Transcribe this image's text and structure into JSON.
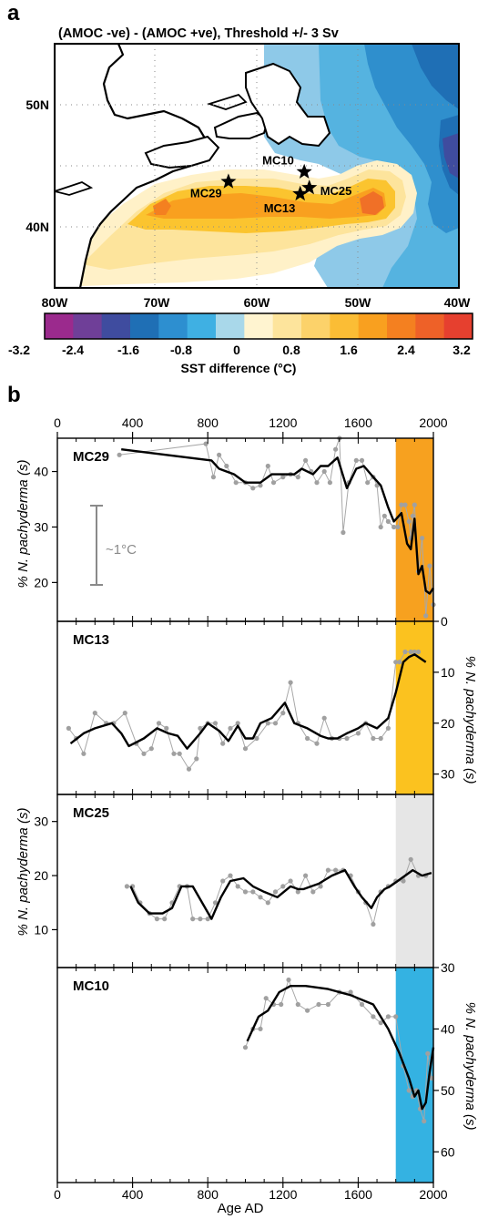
{
  "panel_a": {
    "letter": "a",
    "title": "(AMOC -ve) - (AMOC +ve), Threshold +/- 3 Sv",
    "lon_ticks": [
      "80W",
      "70W",
      "60W",
      "50W",
      "40W"
    ],
    "lat_ticks": [
      "50N",
      "40N"
    ],
    "sites": [
      {
        "name": "MC29",
        "lon": -62.8,
        "lat": 43.7
      },
      {
        "name": "MC10",
        "lon": -55.3,
        "lat": 44.5
      },
      {
        "name": "MC25",
        "lon": -54.8,
        "lat": 43.2
      },
      {
        "name": "MC13",
        "lon": -55.7,
        "lat": 42.7
      }
    ],
    "colorbar": {
      "ticks": [
        "-3.2",
        "-2.4",
        "-1.6",
        "-0.8",
        "0",
        "0.8",
        "1.6",
        "2.4",
        "3.2"
      ],
      "label": "SST difference (°C)",
      "colors": [
        "#9b2a8d",
        "#6f3f98",
        "#3f4c9f",
        "#1f6fb5",
        "#2d8fd0",
        "#3fb0e3",
        "#a9d8ea",
        "#fff4d0",
        "#fde49c",
        "#fcd26a",
        "#fbbd35",
        "#f9a01f",
        "#f48020",
        "#ee6128",
        "#e6402f"
      ]
    }
  },
  "panel_b": {
    "letter": "b",
    "top_ticks": [
      "0",
      "400",
      "800",
      "1200",
      "1600",
      "2000"
    ],
    "bottom_ticks": [
      "0",
      "400",
      "800",
      "1200",
      "1600",
      "2000"
    ],
    "xlabel": "Age AD",
    "ylabel_left": "% N. pachyderma (s)",
    "ylabel_right": "% N. pachyderma (s)",
    "scale_label": "~1°C"
  },
  "chart_data": [
    {
      "type": "line",
      "name": "MC29",
      "xlim": [
        0,
        2000
      ],
      "ylim": [
        46,
        13
      ],
      "y_axis": "left",
      "yticks": [
        "20",
        "30",
        "40"
      ],
      "highlight": {
        "from": 1800,
        "to": 2000,
        "color": "#f7a11f"
      },
      "x": [
        340,
        820,
        860,
        940,
        1000,
        1080,
        1140,
        1200,
        1260,
        1300,
        1360,
        1400,
        1440,
        1490,
        1540,
        1590,
        1630,
        1680,
        1720,
        1760,
        1790,
        1830,
        1860,
        1880,
        1900,
        1920,
        1940,
        1960,
        1980,
        2000
      ],
      "y": [
        44,
        42,
        40.5,
        39.5,
        38,
        38,
        39.5,
        39.5,
        39.5,
        40.5,
        39.5,
        41,
        41,
        42.5,
        37,
        40.5,
        41,
        39,
        37.5,
        33.5,
        31,
        32.5,
        27,
        26,
        31.5,
        21.5,
        23,
        18.5,
        18,
        19
      ],
      "points_x": [
        330,
        790,
        830,
        860,
        900,
        950,
        1000,
        1040,
        1080,
        1120,
        1150,
        1200,
        1240,
        1280,
        1320,
        1350,
        1380,
        1420,
        1450,
        1480,
        1500,
        1520,
        1550,
        1590,
        1620,
        1650,
        1680,
        1700,
        1720,
        1740,
        1760,
        1790,
        1810,
        1830,
        1850,
        1870,
        1880,
        1890,
        1900,
        1920,
        1940,
        1960,
        1980,
        2000
      ],
      "points_y": [
        43,
        45,
        39,
        43,
        41,
        38,
        38,
        37,
        37.5,
        41,
        38,
        39,
        39.5,
        39,
        42,
        40,
        38,
        40,
        38,
        44,
        46,
        29,
        38,
        42,
        42,
        38,
        39,
        37.5,
        30,
        32,
        31,
        30,
        30,
        34,
        34,
        31,
        28,
        32,
        34,
        22,
        28,
        14,
        23,
        16
      ]
    },
    {
      "type": "line",
      "name": "MC13",
      "xlim": [
        0,
        2000
      ],
      "ylim": [
        0,
        34
      ],
      "y_axis": "right",
      "yticks": [
        "0",
        "10",
        "20",
        "30"
      ],
      "highlight": {
        "from": 1800,
        "to": 2000,
        "color": "#fbc21f"
      },
      "x": [
        70,
        140,
        200,
        290,
        340,
        380,
        460,
        530,
        590,
        640,
        690,
        760,
        800,
        860,
        910,
        960,
        1000,
        1040,
        1080,
        1140,
        1210,
        1260,
        1330,
        1400,
        1440,
        1490,
        1540,
        1600,
        1640,
        1700,
        1760,
        1800,
        1840,
        1870,
        1900,
        1960
      ],
      "y": [
        24,
        22,
        21,
        20,
        22,
        24.5,
        23,
        21,
        22,
        22.5,
        25,
        22,
        20,
        21.5,
        23.5,
        20.5,
        23,
        23,
        20,
        19,
        16,
        20,
        21,
        22.5,
        23,
        23,
        22,
        21,
        20,
        21,
        19,
        14,
        8,
        7,
        6.5,
        8
      ],
      "points_x": [
        60,
        100,
        140,
        200,
        260,
        300,
        360,
        420,
        460,
        500,
        540,
        580,
        620,
        650,
        700,
        740,
        760,
        800,
        840,
        880,
        920,
        960,
        1000,
        1060,
        1120,
        1160,
        1200,
        1240,
        1280,
        1330,
        1380,
        1420,
        1460,
        1500,
        1540,
        1600,
        1640,
        1680,
        1720,
        1760,
        1800,
        1820,
        1850,
        1880,
        1900,
        1920
      ],
      "points_y": [
        21,
        23,
        26,
        18,
        20,
        20,
        18,
        24,
        26,
        25,
        20,
        21,
        26,
        26,
        29,
        27,
        21,
        20,
        20,
        24,
        21,
        20,
        25,
        23,
        20,
        20,
        18,
        12,
        20,
        23,
        24,
        19,
        23,
        23,
        23,
        22,
        20,
        23,
        23,
        21,
        8,
        8,
        6,
        6,
        6,
        6
      ]
    },
    {
      "type": "line",
      "name": "MC25",
      "xlim": [
        0,
        2000
      ],
      "ylim": [
        35,
        3
      ],
      "y_axis": "left",
      "yticks": [
        "10",
        "20",
        "30"
      ],
      "highlight": {
        "from": 1800,
        "to": 2000,
        "color": "#e6e6e6"
      },
      "x": [
        390,
        430,
        490,
        560,
        610,
        660,
        720,
        820,
        870,
        920,
        990,
        1040,
        1100,
        1170,
        1240,
        1280,
        1310,
        1350,
        1390,
        1460,
        1530,
        1580,
        1620,
        1670,
        1700,
        1740,
        1770,
        1810,
        1850,
        1890,
        1940,
        1990
      ],
      "y": [
        18,
        15,
        13,
        13,
        14,
        18,
        18,
        12,
        16,
        19,
        19.5,
        18,
        17,
        16,
        18,
        17.5,
        17.5,
        18,
        18.5,
        20,
        21,
        18,
        16,
        14,
        16,
        17.5,
        18,
        19,
        20,
        21,
        20,
        20.5
      ],
      "points_x": [
        370,
        400,
        440,
        490,
        530,
        570,
        610,
        650,
        690,
        720,
        760,
        800,
        840,
        880,
        920,
        960,
        1000,
        1040,
        1080,
        1120,
        1160,
        1200,
        1240,
        1280,
        1320,
        1360,
        1400,
        1440,
        1480,
        1520,
        1560,
        1600,
        1640,
        1680,
        1720,
        1760,
        1800,
        1840,
        1880,
        1920,
        1960
      ],
      "points_y": [
        18,
        18,
        15,
        13,
        12,
        12,
        15,
        18,
        18,
        12,
        12,
        12,
        15,
        19,
        20,
        18,
        17,
        17,
        16,
        15,
        17,
        18,
        19,
        17,
        20,
        17,
        18,
        21,
        21,
        21,
        20,
        17,
        15,
        11,
        17,
        18,
        19,
        19,
        23,
        20,
        20
      ]
    },
    {
      "type": "line",
      "name": "MC10",
      "xlim": [
        0,
        2000
      ],
      "ylim": [
        30,
        65
      ],
      "y_axis": "right",
      "yticks": [
        "30",
        "40",
        "50",
        "60"
      ],
      "highlight": {
        "from": 1800,
        "to": 2000,
        "color": "#34b2e2"
      },
      "x": [
        1010,
        1070,
        1120,
        1180,
        1240,
        1320,
        1440,
        1560,
        1680,
        1760,
        1820,
        1870,
        1900,
        1920,
        1940,
        1960,
        1980,
        2000
      ],
      "y": [
        42,
        38,
        37,
        34,
        33,
        33,
        33.5,
        34.5,
        36,
        40,
        44,
        48,
        51,
        50,
        53,
        52,
        47,
        43
      ],
      "points_x": [
        1000,
        1040,
        1080,
        1110,
        1150,
        1190,
        1230,
        1280,
        1330,
        1390,
        1440,
        1500,
        1560,
        1620,
        1680,
        1720,
        1760,
        1800,
        1840,
        1870,
        1890,
        1910,
        1930,
        1950,
        1970,
        1990
      ],
      "points_y": [
        43,
        40,
        40,
        35,
        36,
        36,
        32,
        36,
        37,
        36,
        36,
        34,
        34,
        36,
        38,
        39,
        38,
        38,
        46,
        50,
        51,
        50,
        53,
        55,
        44,
        48
      ]
    }
  ]
}
